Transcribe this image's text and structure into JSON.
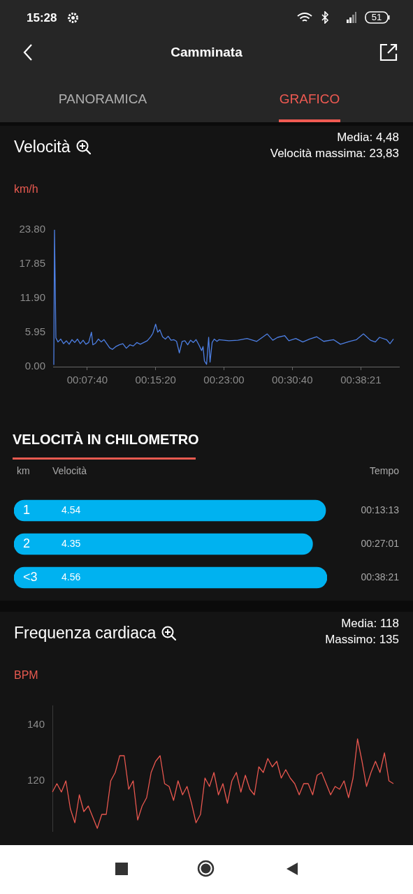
{
  "chart_data": [
    {
      "type": "other",
      "title": "Camminata",
      "annotations": [
        "15:28",
        "51",
        "PANORAMICA",
        "GRAFICO"
      ]
    },
    {
      "type": "line",
      "title": "Velocità",
      "annotations": [
        "Media: 4,48",
        "Velocità massima: 23,83"
      ],
      "ylabel": "km/h",
      "marker": "none",
      "x": [
        0.0652,
        0.0665,
        0.0691,
        0.073,
        0.0782,
        0.0835,
        0.0887,
        0.0939,
        0.0991,
        0.1043,
        0.1095,
        0.1147,
        0.12,
        0.1252,
        0.1304,
        0.1356,
        0.1382,
        0.1434,
        0.1486,
        0.1539,
        0.1591,
        0.1643,
        0.1695,
        0.1747,
        0.1812,
        0.1878,
        0.1943,
        0.2008,
        0.2073,
        0.2138,
        0.2204,
        0.2269,
        0.2334,
        0.2399,
        0.2464,
        0.2504,
        0.2556,
        0.2595,
        0.2634,
        0.2686,
        0.2738,
        0.279,
        0.2843,
        0.2895,
        0.2947,
        0.2999,
        0.3051,
        0.3103,
        0.3155,
        0.3208,
        0.326,
        0.3312,
        0.3364,
        0.3416,
        0.3442,
        0.3468,
        0.3508,
        0.3547,
        0.3573,
        0.3612,
        0.3651,
        0.3703,
        0.3742,
        0.3925,
        0.4094,
        0.4264,
        0.4446,
        0.4642,
        0.4746,
        0.4837,
        0.4968,
        0.5046,
        0.5176,
        0.5307,
        0.5437,
        0.5568,
        0.5698,
        0.5881,
        0.6011,
        0.618,
        0.6311,
        0.6441,
        0.6572,
        0.6663,
        0.6741,
        0.6872,
        0.6937,
        0.7002
      ],
      "series": [
        {
          "color": "#4d7fe3",
          "values": [
            0.3,
            23.8,
            5.0,
            4.3,
            4.8,
            4.0,
            4.5,
            3.9,
            4.7,
            4.2,
            4.8,
            4.0,
            4.6,
            3.9,
            4.2,
            6.0,
            3.8,
            4.1,
            4.8,
            4.3,
            4.7,
            4.0,
            3.3,
            3.0,
            3.5,
            3.8,
            4.0,
            3.2,
            3.8,
            3.6,
            4.2,
            3.9,
            4.2,
            4.5,
            5.2,
            5.8,
            7.4,
            6.0,
            6.4,
            5.2,
            4.8,
            5.3,
            4.6,
            4.7,
            4.4,
            2.4,
            4.4,
            4.5,
            3.8,
            4.6,
            4.2,
            4.7,
            3.8,
            2.8,
            3.5,
            1.0,
            0.4,
            5.1,
            0.8,
            4.2,
            4.8,
            4.4,
            4.7,
            4.5,
            4.6,
            4.9,
            4.4,
            5.7,
            4.6,
            5.1,
            5.4,
            4.5,
            4.9,
            4.3,
            4.8,
            5.2,
            4.4,
            4.7,
            3.9,
            4.4,
            4.7,
            5.7,
            4.6,
            4.3,
            5.1,
            4.7,
            4.0,
            4.8
          ]
        }
      ],
      "xlim": [
        0.0639,
        0.7106
      ],
      "xticks": [
        {
          "value": 0.1278,
          "label": "00:07:40"
        },
        {
          "value": 0.2556,
          "label": "00:15:20"
        },
        {
          "value": 0.3833,
          "label": "00:23:00"
        },
        {
          "value": 0.5111,
          "label": "00:30:40"
        },
        {
          "value": 0.6392,
          "label": "00:38:21"
        }
      ],
      "ylim": [
        0,
        23.8
      ],
      "yticks": [
        {
          "value": 0,
          "label": "0.00"
        },
        5.95,
        {
          "value": 11.9,
          "label": "11.90"
        },
        17.85,
        {
          "value": 23.8,
          "label": "23.80"
        }
      ]
    },
    {
      "type": "bar",
      "orientation": "horizontal",
      "title": "VELOCITÀ IN CHILOMETRO",
      "ylabel": "km",
      "xlabel": "Velocità",
      "categories": [
        "1",
        "2",
        "<3"
      ],
      "values": [
        4.54,
        4.35,
        4.56
      ],
      "color": "#00b2f0",
      "data_labels": true,
      "xlim": [
        0,
        4.56
      ],
      "tick_labels": "y",
      "annotations": [
        "Tempo",
        "00:13:13",
        "00:27:01",
        "00:38:21"
      ]
    },
    {
      "type": "line",
      "title": "Frequenza cardiaca",
      "annotations": [
        "Media: 118",
        "Massimo: 135"
      ],
      "ylabel": "BPM",
      "marker": "none",
      "tick_labels": "y",
      "categories": [
        null,
        null,
        null,
        null,
        null,
        null,
        null,
        null,
        null,
        null,
        null,
        null,
        null,
        null,
        null,
        null,
        null,
        null,
        null,
        null,
        null,
        null,
        null,
        null,
        null,
        null,
        null,
        null,
        null,
        null,
        null,
        null,
        null,
        null,
        null,
        null,
        null,
        null,
        null,
        null,
        null,
        null,
        null,
        null,
        null,
        null,
        null,
        null,
        null,
        null,
        null,
        null,
        null,
        null,
        null,
        null,
        null,
        null,
        null,
        null,
        null,
        null,
        null,
        null,
        null,
        null,
        null,
        null,
        null,
        null,
        null,
        null,
        null,
        null,
        null,
        null,
        null
      ],
      "series": [
        {
          "color": "#e9574f",
          "values": [
            116,
            119,
            116,
            120,
            110,
            105,
            115,
            109,
            111,
            107,
            103,
            108,
            108,
            120,
            123,
            129,
            129,
            117,
            120,
            106,
            111,
            114,
            123,
            127,
            129,
            119,
            118,
            113,
            120,
            115,
            118,
            112,
            105,
            108,
            121,
            118,
            123,
            115,
            119,
            112,
            120,
            123,
            116,
            122,
            117,
            115,
            125,
            123,
            128,
            125,
            127,
            121,
            124,
            121,
            119,
            115,
            119,
            119,
            115,
            122,
            123,
            119,
            115,
            118,
            117,
            120,
            114,
            121,
            135,
            127,
            118,
            123,
            127,
            123,
            130,
            120,
            119
          ]
        }
      ],
      "ylim": [
        102,
        147
      ],
      "yticks": [
        120,
        140
      ]
    }
  ]
}
